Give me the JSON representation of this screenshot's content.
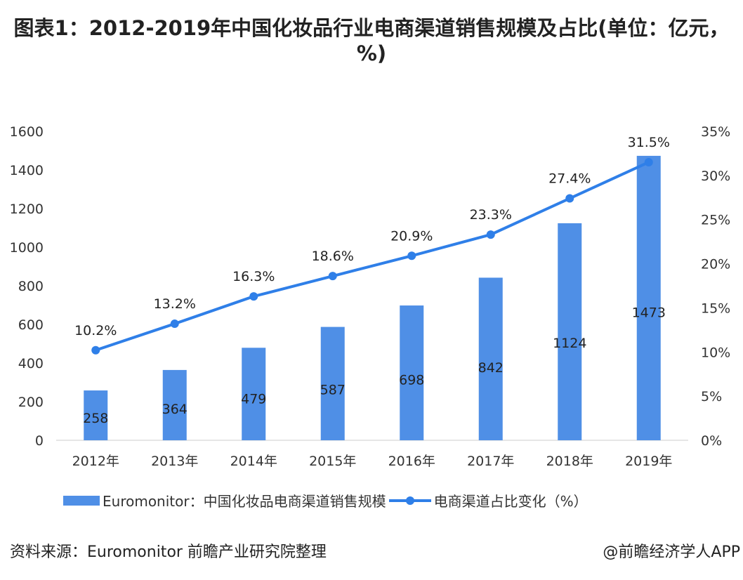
{
  "chart_data": {
    "type": "bar+line",
    "title": "图表1：2012-2019年中国化妆品行业电商渠道销售规模及占比(单位：亿元，%)",
    "categories": [
      "2012年",
      "2013年",
      "2014年",
      "2015年",
      "2016年",
      "2017年",
      "2018年",
      "2019年"
    ],
    "series": [
      {
        "name": "Euromonitor：中国化妆品电商渠道销售规模",
        "type": "bar",
        "axis": "left",
        "values": [
          258,
          364,
          479,
          587,
          698,
          842,
          1124,
          1473
        ],
        "labels": [
          "258",
          "364",
          "479",
          "587",
          "698",
          "842",
          "1124",
          "1473"
        ],
        "color": "#4f8fe6"
      },
      {
        "name": "电商渠道占比变化（%）",
        "type": "line",
        "axis": "right",
        "values": [
          10.2,
          13.2,
          16.3,
          18.6,
          20.9,
          23.3,
          27.4,
          31.5
        ],
        "labels": [
          "10.2%",
          "13.2%",
          "16.3%",
          "18.6%",
          "20.9%",
          "23.3%",
          "27.4%",
          "31.5%"
        ],
        "color": "#2f7fe8"
      }
    ],
    "ylim_left": [
      0,
      1600
    ],
    "ylim_right": [
      0,
      35
    ],
    "yticks_left": [
      "0",
      "200",
      "400",
      "600",
      "800",
      "1000",
      "1200",
      "1400",
      "1600"
    ],
    "yticks_right": [
      "0%",
      "5%",
      "10%",
      "15%",
      "20%",
      "25%",
      "30%",
      "35%"
    ],
    "grid": false,
    "legend": "bottom"
  },
  "source": "资料来源：Euromonitor 前瞻产业研究院整理",
  "credit": "@前瞻经济学人APP"
}
